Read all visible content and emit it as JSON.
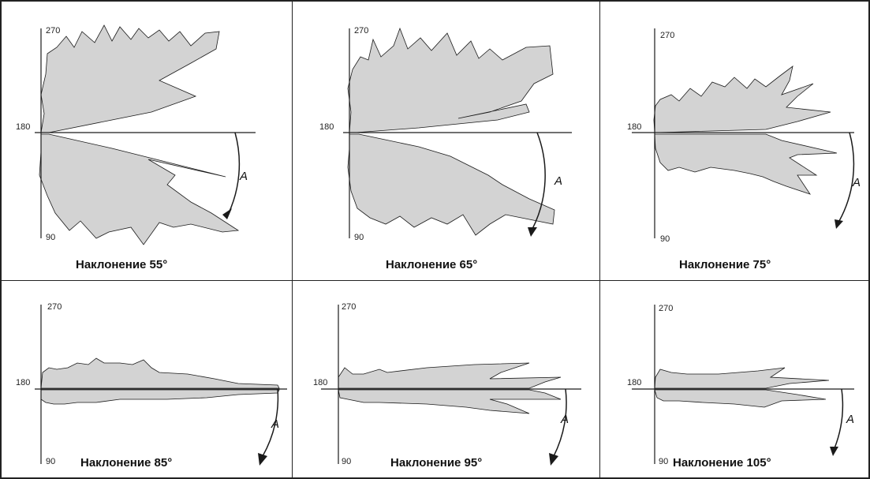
{
  "colors": {
    "lobe_fill": "#d3d3d3",
    "line": "#1a1a1a",
    "border": "#222222",
    "background": "#ffffff"
  },
  "axis_labels": {
    "top": "270",
    "left": "180",
    "bottom": "90"
  },
  "arrow_label": "A",
  "panels": [
    {
      "caption": "Наклонение 55°",
      "inclination": 55
    },
    {
      "caption": "Наклонение 65°",
      "inclination": 65
    },
    {
      "caption": "Наклонение 75°",
      "inclination": 75
    },
    {
      "caption": "Наклонение 85°",
      "inclination": 85
    },
    {
      "caption": "Наклонение 95°",
      "inclination": 95
    },
    {
      "caption": "Наклонение 105°",
      "inclination": 105
    }
  ]
}
